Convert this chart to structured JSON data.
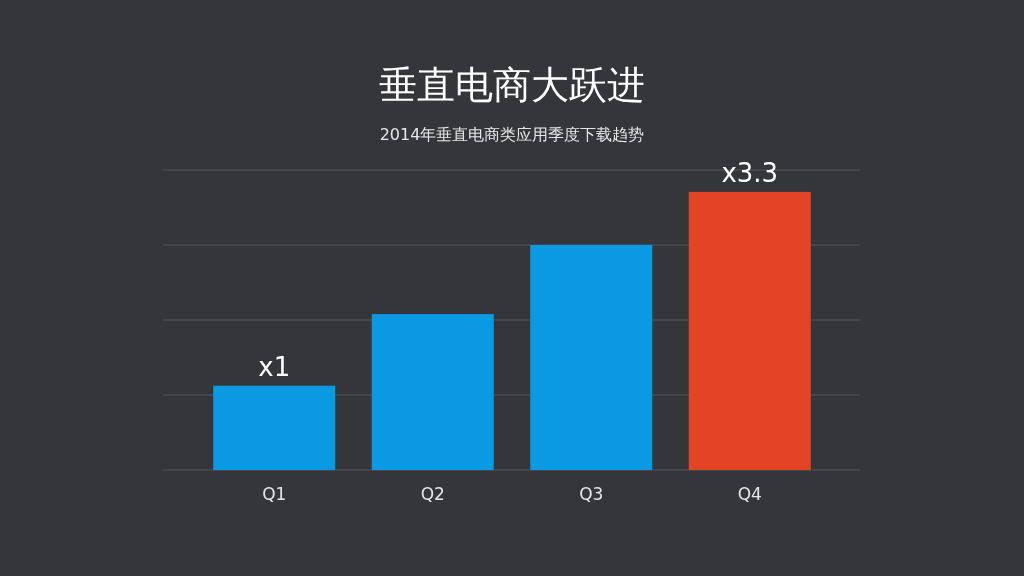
{
  "chart_data": {
    "type": "bar",
    "title": "垂直电商大跃进",
    "subtitle": "2014年垂直电商类应用季度下载趋势",
    "categories": [
      "Q1",
      "Q2",
      "Q3",
      "Q4"
    ],
    "values": [
      1,
      1.85,
      2.67,
      3.3
    ],
    "value_labels": [
      "x1",
      null,
      null,
      "x3.3"
    ],
    "colors": [
      "#0a9ae4",
      "#0a9ae4",
      "#0a9ae4",
      "#e34424"
    ],
    "ylim": [
      0,
      3.56
    ],
    "yticks": [
      {
        "value": 0,
        "label": null
      },
      {
        "value": 0.89,
        "label": null
      },
      {
        "value": 1.78,
        "label": null
      },
      {
        "value": 2.67,
        "label": null
      },
      {
        "value": 3.56,
        "label": null
      }
    ],
    "grid": "y",
    "tick_labels": "x"
  }
}
